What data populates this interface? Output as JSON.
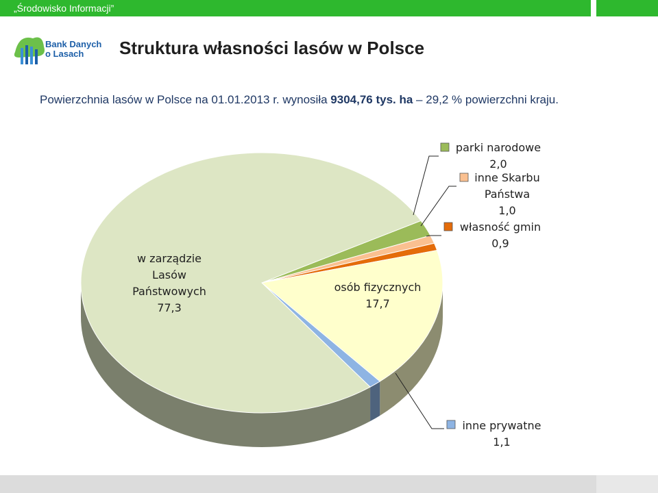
{
  "header": {
    "title": "„Środowisko Informacji”"
  },
  "logo": {
    "line1": "Bank Danych",
    "line2": "o Lasach"
  },
  "slide": {
    "title": "Struktura własności lasów w Polsce",
    "intro_prefix": "Powierzchnia lasów w Polsce na 01.01.2013 r. wynosiła ",
    "intro_bold1": "9304,76 tys. ha",
    "intro_mid": " – ",
    "intro_suffix": "29,2 % powierzchni kraju."
  },
  "colors": {
    "header_green": "#2eb82e",
    "slice_lp": "#dde6c4",
    "slice_osoby": "#ffffcc",
    "slice_prywatne": "#8eb4e3",
    "slice_parki": "#9bbb59",
    "slice_skarb": "#fac090",
    "slice_gmin": "#e46c0a"
  },
  "chart_data": {
    "type": "pie",
    "style": "3d",
    "slices": [
      {
        "name": "w zarządzie Lasów Państwowych",
        "label_lines": [
          "w zarządzie",
          "Lasów",
          "Państwowych",
          "77,3"
        ],
        "value": 77.3,
        "color": "#dde6c4"
      },
      {
        "name": "parki narodowe",
        "label_lines": [
          "parki narodowe",
          "2,0"
        ],
        "value": 2.0,
        "color": "#9bbb59"
      },
      {
        "name": "inne Skarbu Państwa",
        "label_lines": [
          "inne Skarbu",
          "Państwa",
          "1,0"
        ],
        "value": 1.0,
        "color": "#fac090"
      },
      {
        "name": "własność gmin",
        "label_lines": [
          "własność gmin",
          "0,9"
        ],
        "value": 0.9,
        "color": "#e46c0a"
      },
      {
        "name": "osób fizycznych",
        "label_lines": [
          "osób fizycznych",
          "17,7"
        ],
        "value": 17.7,
        "color": "#ffffcc"
      },
      {
        "name": "inne prywatne",
        "label_lines": [
          "inne prywatne",
          "1,1"
        ],
        "value": 1.1,
        "color": "#8eb4e3"
      }
    ]
  }
}
